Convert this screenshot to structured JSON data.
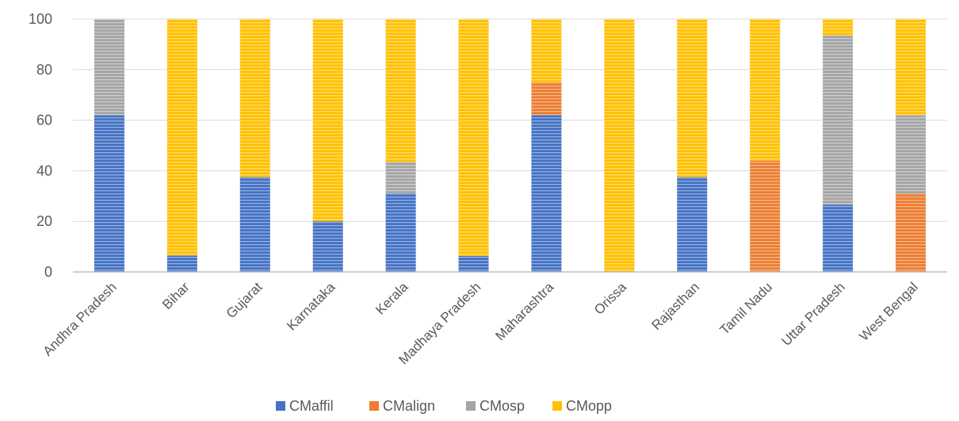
{
  "chart_data": {
    "type": "bar",
    "stacked": true,
    "categories": [
      "Andhra Pradesh",
      "Bihar",
      "Gujarat",
      "Karnataka",
      "Kerala",
      "Madhaya Pradesh",
      "Maharashtra",
      "Orissa",
      "Rajasthan",
      "Tamil Nadu",
      "Uttar Pradesh",
      "West Bengal"
    ],
    "series": [
      {
        "name": "CMaffil",
        "color": "#4472C4",
        "values": [
          62,
          6.5,
          37.5,
          20,
          31,
          6.3,
          62,
          0,
          37.5,
          0,
          26.5,
          0
        ]
      },
      {
        "name": "CMalign",
        "color": "#ED7D31",
        "values": [
          0,
          0,
          0,
          0,
          0,
          0,
          13,
          0,
          0,
          44,
          0,
          31
        ]
      },
      {
        "name": "CMosp",
        "color": "#A5A5A5",
        "values": [
          38,
          0,
          0,
          0,
          12.5,
          0,
          0,
          0,
          0,
          0,
          67,
          31
        ]
      },
      {
        "name": "CMopp",
        "color": "#FFC000",
        "values": [
          0,
          93.5,
          62.5,
          80,
          56.5,
          93.7,
          25,
          100,
          62.5,
          56,
          6.5,
          38
        ]
      }
    ],
    "yticks": [
      0,
      20,
      40,
      60,
      80,
      100
    ],
    "ylim": [
      0,
      100
    ],
    "grid": true,
    "legend": "bottom"
  }
}
